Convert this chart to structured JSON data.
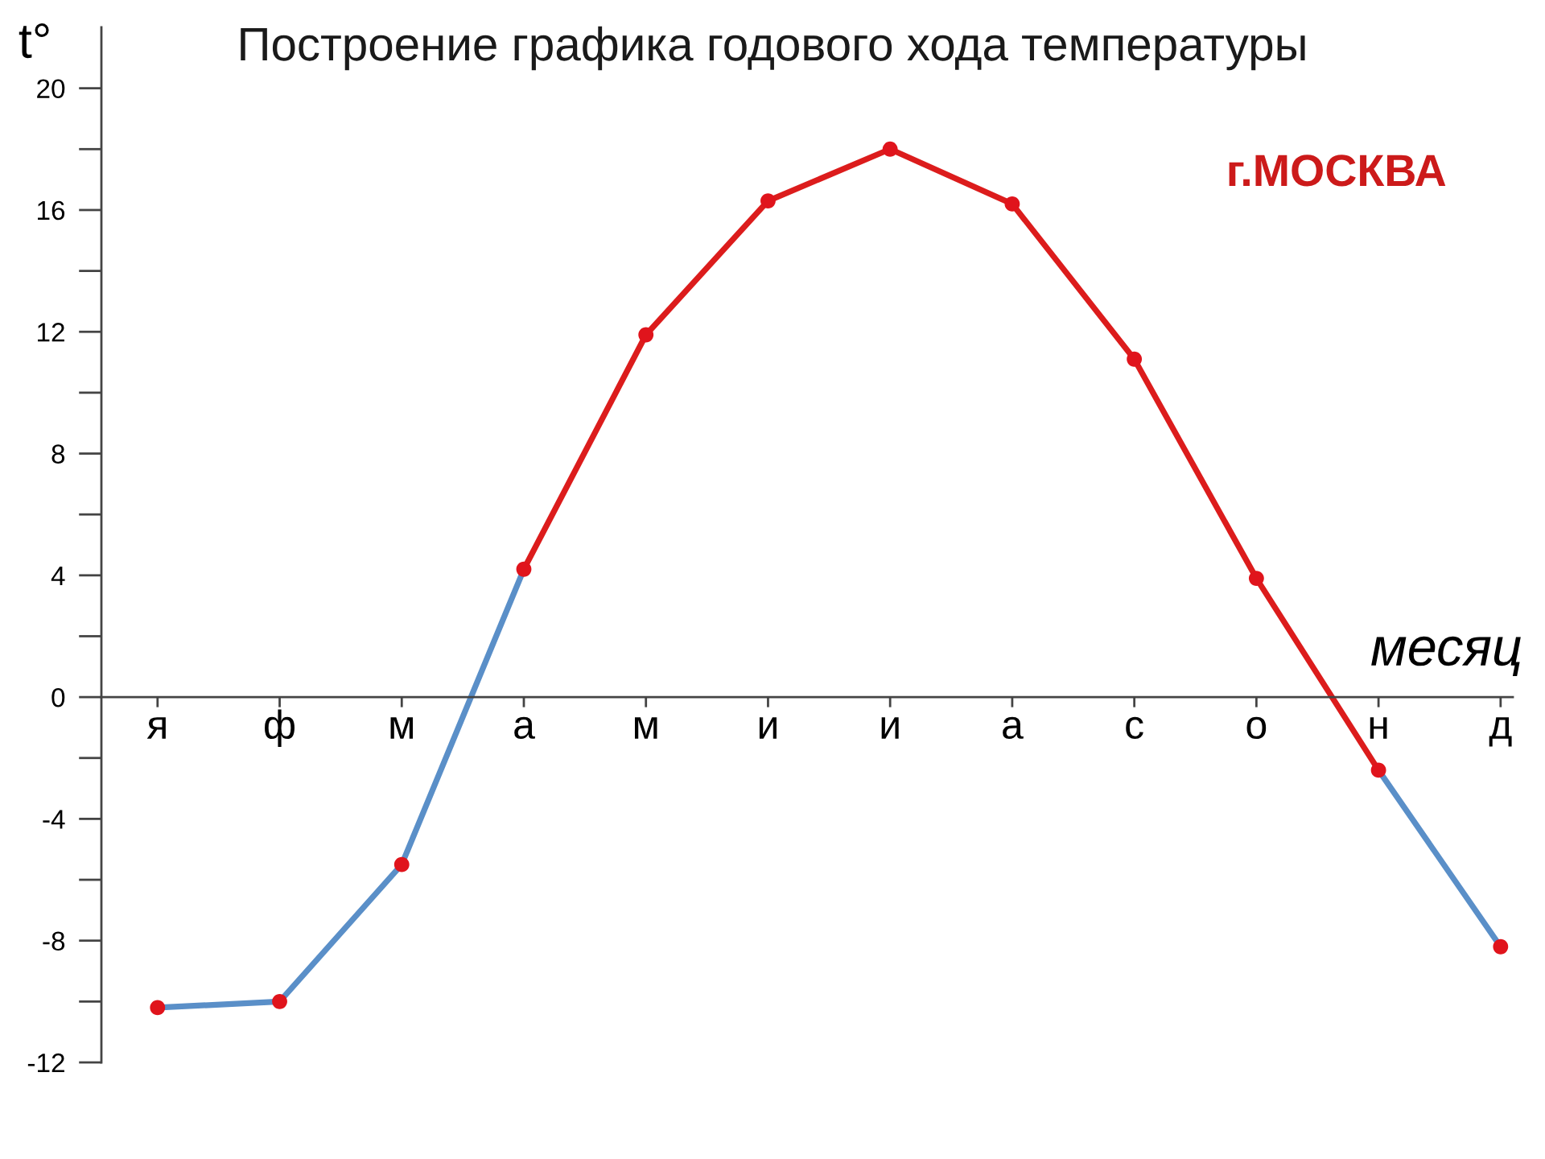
{
  "chart_data": {
    "type": "line",
    "title": "Построение графика годового хода температуры",
    "xlabel": "месяц",
    "ylabel": "t°",
    "annotations": [
      "г.МОСКВА"
    ],
    "categories": [
      "я",
      "ф",
      "м",
      "а",
      "м",
      "и",
      "и",
      "а",
      "с",
      "о",
      "н",
      "д"
    ],
    "ylim": [
      -12,
      22
    ],
    "yticks": [
      -12,
      {
        "value": -10,
        "label": null
      },
      -8,
      {
        "value": -6,
        "label": null
      },
      -4,
      {
        "value": -2,
        "label": null
      },
      0,
      {
        "value": 2,
        "label": null
      },
      4,
      {
        "value": 6,
        "label": null
      },
      8,
      {
        "value": 10,
        "label": null
      },
      12,
      {
        "value": 14,
        "label": null
      },
      16,
      {
        "value": 18,
        "label": null
      },
      20
    ],
    "series": [
      {
        "color": "#5a8fc8",
        "values": [
          -10.2,
          -10.0,
          -5.5,
          4.2,
          null,
          null,
          null,
          null,
          null,
          null,
          -2.4,
          -8.2
        ]
      },
      {
        "color": "#dc1c1c",
        "values": [
          null,
          null,
          null,
          4.2,
          11.9,
          16.3,
          18.0,
          16.2,
          11.1,
          3.9,
          -2.4,
          null
        ]
      },
      {
        "type": "scatter",
        "color": "#e0141c",
        "marker": "circle",
        "values": [
          -10.2,
          -10.0,
          -5.5,
          4.2,
          11.9,
          16.3,
          18.0,
          16.2,
          11.1,
          3.9,
          -2.4,
          -8.2
        ]
      }
    ]
  }
}
